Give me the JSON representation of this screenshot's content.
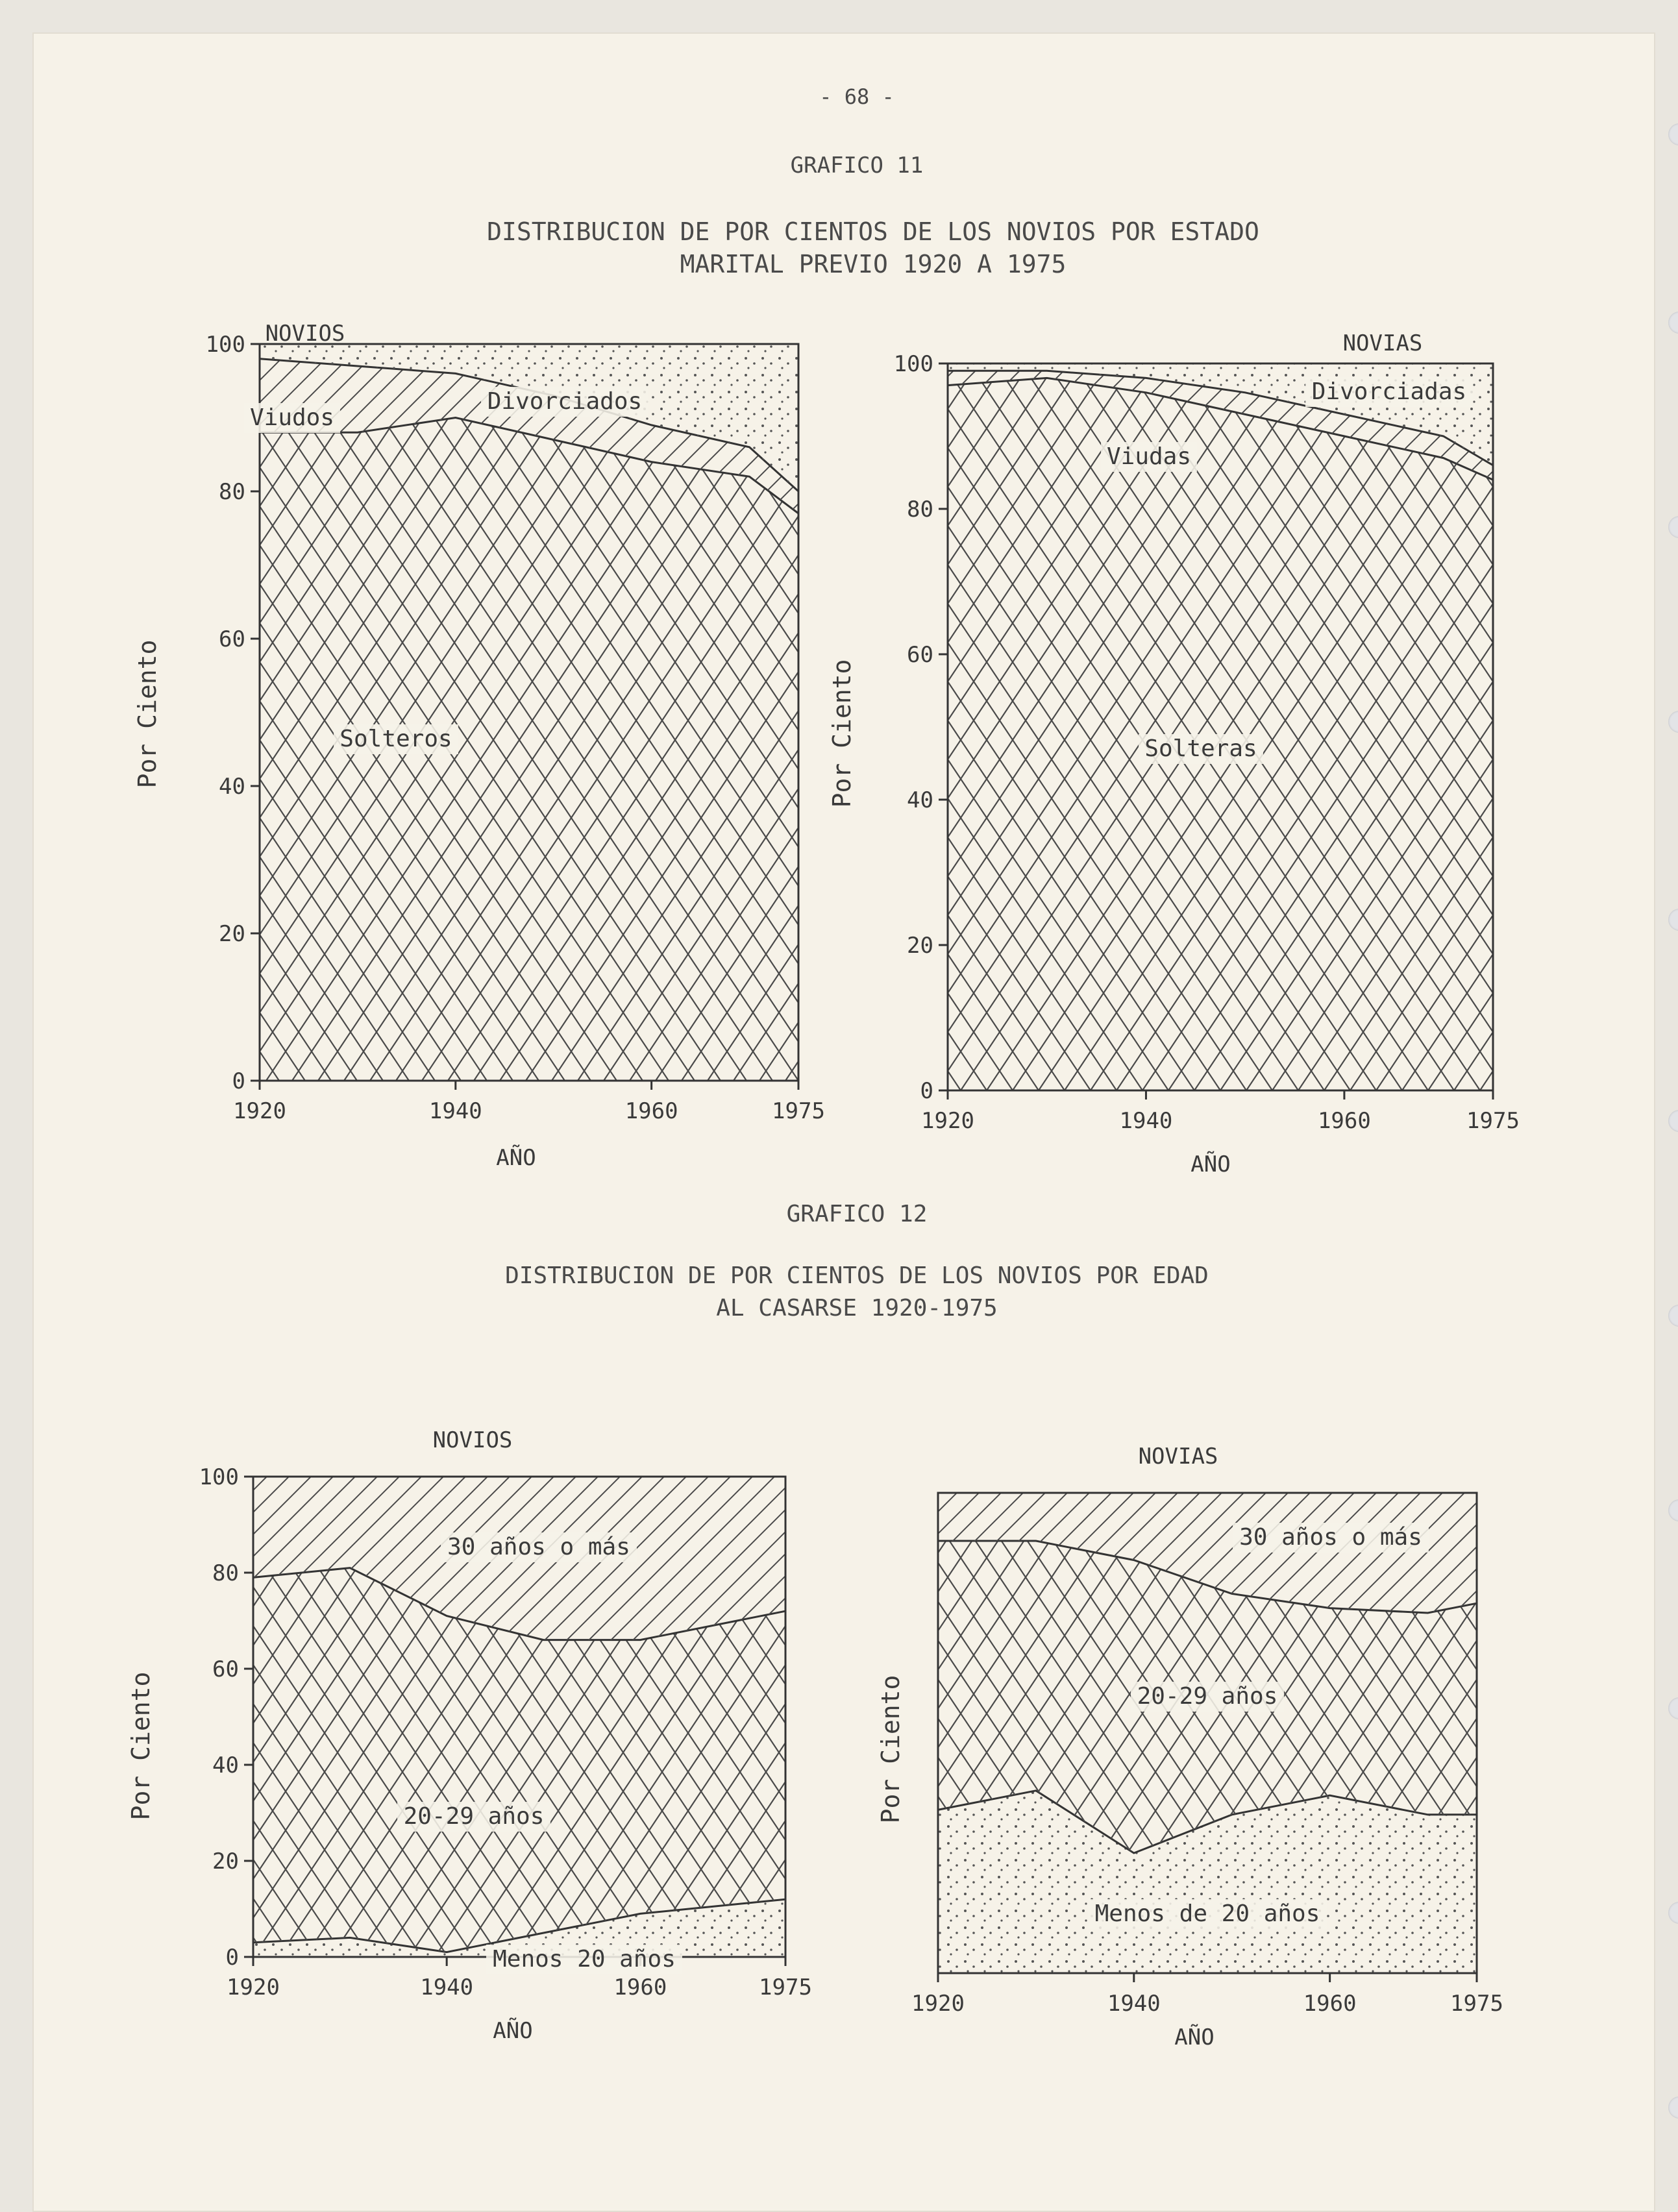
{
  "page": {
    "page_number": "- 68 -",
    "fig11_label": "GRAFICO 11",
    "fig11_title_line1": "DISTRIBUCION DE POR CIENTOS DE LOS NOVIOS POR ESTADO",
    "fig11_title_line2": "MARITAL PREVIO 1920 A 1975",
    "fig12_label": "GRAFICO 12",
    "fig12_title_line1": "DISTRIBUCION DE POR CIENTOS DE LOS NOVIOS POR EDAD",
    "fig12_title_line2": "AL CASARSE 1920-1975"
  },
  "colors": {
    "ink": "#3a3a3a",
    "paper": "#f6f2e8"
  },
  "chart_data": [
    {
      "id": "novios_estado",
      "type": "area",
      "title": "NOVIOS",
      "xlabel": "AÑO",
      "ylabel": "Por Ciento",
      "x": [
        1920,
        1930,
        1940,
        1950,
        1960,
        1970,
        1975
      ],
      "xticks": [
        "1920",
        "1940",
        "1960",
        "1975"
      ],
      "yticks": [
        "0",
        "20",
        "40",
        "60",
        "80",
        "100"
      ],
      "ylim": [
        0,
        100
      ],
      "series": [
        {
          "name": "Solteros",
          "values": [
            88,
            88,
            90,
            87,
            84,
            82,
            77
          ]
        },
        {
          "name": "Viudos",
          "values": [
            10,
            9,
            6,
            6,
            5,
            4,
            3
          ]
        },
        {
          "name": "Divorciados",
          "values": [
            2,
            3,
            4,
            7,
            11,
            14,
            20
          ]
        }
      ]
    },
    {
      "id": "novias_estado",
      "type": "area",
      "title": "NOVIAS",
      "xlabel": "AÑO",
      "ylabel": "Por Ciento",
      "x": [
        1920,
        1930,
        1940,
        1950,
        1960,
        1970,
        1975
      ],
      "xticks": [
        "1920",
        "1940",
        "1960",
        "1975"
      ],
      "yticks": [
        "0",
        "20",
        "40",
        "60",
        "80",
        "100"
      ],
      "ylim": [
        0,
        100
      ],
      "series": [
        {
          "name": "Solteras",
          "values": [
            97,
            98,
            96,
            93,
            90,
            87,
            84
          ]
        },
        {
          "name": "Viudas",
          "values": [
            2,
            1,
            2,
            3,
            3,
            3,
            2
          ]
        },
        {
          "name": "Divorciadas",
          "values": [
            1,
            1,
            2,
            4,
            7,
            10,
            14
          ]
        }
      ]
    },
    {
      "id": "novios_edad",
      "type": "area",
      "title": "NOVIOS",
      "xlabel": "AÑO",
      "ylabel": "Por Ciento",
      "x": [
        1920,
        1930,
        1940,
        1950,
        1960,
        1970,
        1975
      ],
      "xticks": [
        "1920",
        "1940",
        "1960",
        "1975"
      ],
      "yticks": [
        "0",
        "20",
        "40",
        "60",
        "80",
        "100"
      ],
      "ylim": [
        0,
        100
      ],
      "series": [
        {
          "name": "Menos 20 años",
          "values": [
            3,
            4,
            1,
            5,
            9,
            11,
            12
          ]
        },
        {
          "name": "20-29 años",
          "values": [
            76,
            77,
            70,
            61,
            57,
            59,
            60
          ]
        },
        {
          "name": "30 años o más",
          "values": [
            21,
            19,
            29,
            34,
            34,
            30,
            28
          ]
        }
      ]
    },
    {
      "id": "novias_edad",
      "type": "area",
      "title": "NOVIAS",
      "xlabel": "AÑO",
      "ylabel": "Por Ciento",
      "x": [
        1920,
        1930,
        1940,
        1950,
        1960,
        1970,
        1975
      ],
      "xticks": [
        "1920",
        "1940",
        "1960",
        "1975"
      ],
      "yticks": [],
      "ylim": [
        0,
        100
      ],
      "series": [
        {
          "name": "Menos de 20 años",
          "values": [
            34,
            38,
            25,
            33,
            37,
            33,
            33
          ]
        },
        {
          "name": "20-29 años",
          "values": [
            56,
            52,
            61,
            46,
            39,
            42,
            44
          ]
        },
        {
          "name": "30 años o más",
          "values": [
            10,
            10,
            14,
            21,
            24,
            25,
            23
          ]
        }
      ]
    }
  ]
}
